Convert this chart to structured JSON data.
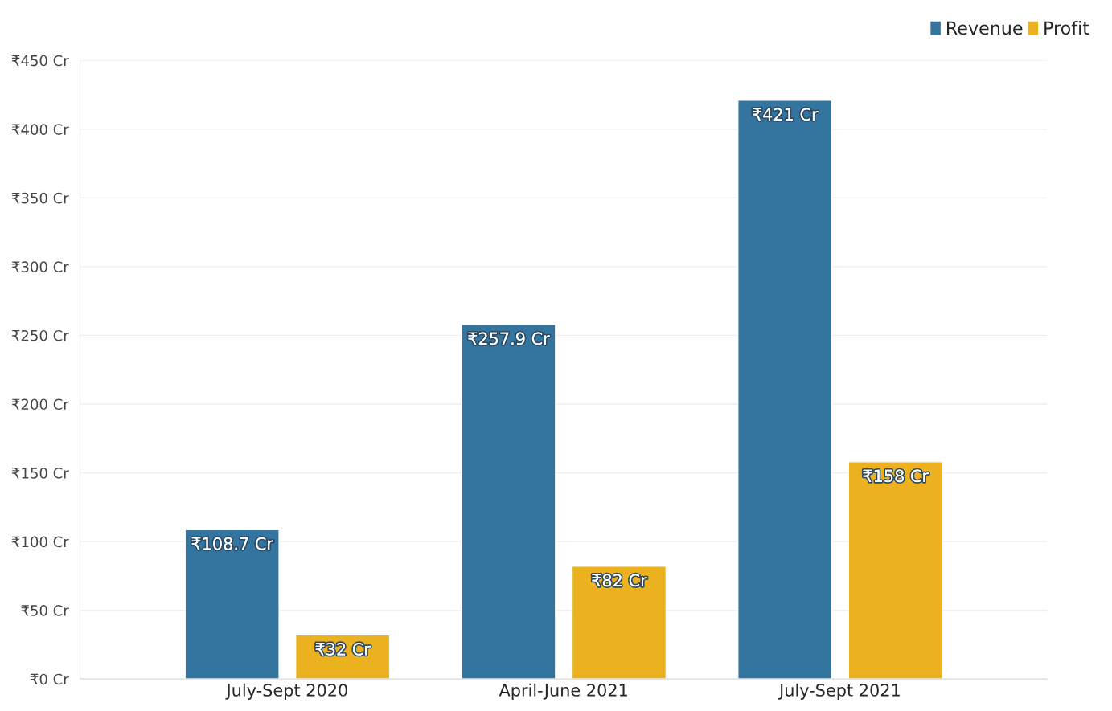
{
  "chart_data": {
    "type": "bar",
    "categories": [
      "July-Sept 2020",
      "April-June 2021",
      "July-Sept 2021"
    ],
    "series": [
      {
        "name": "Revenue",
        "color": "#34759f",
        "values": [
          108.7,
          257.9,
          421
        ],
        "value_labels": [
          "₹108.7 Cr",
          "₹257.9 Cr",
          "₹421 Cr"
        ]
      },
      {
        "name": "Profit",
        "color": "#ebb11f",
        "values": [
          32,
          82,
          158
        ],
        "value_labels": [
          "₹32 Cr",
          "₹82 Cr",
          "₹158 Cr"
        ]
      }
    ],
    "ylim": [
      0,
      450
    ],
    "yticks": [
      {
        "value": 0,
        "label": "₹0 Cr"
      },
      {
        "value": 50,
        "label": "₹50 Cr"
      },
      {
        "value": 100,
        "label": "₹100 Cr"
      },
      {
        "value": 150,
        "label": "₹150 Cr"
      },
      {
        "value": 200,
        "label": "₹200 Cr"
      },
      {
        "value": 250,
        "label": "₹250 Cr"
      },
      {
        "value": 300,
        "label": "₹300 Cr"
      },
      {
        "value": 350,
        "label": "₹350 Cr"
      },
      {
        "value": 400,
        "label": "₹400 Cr"
      },
      {
        "value": 450,
        "label": "₹450 Cr"
      }
    ],
    "grid": "y",
    "legend": "top right"
  }
}
